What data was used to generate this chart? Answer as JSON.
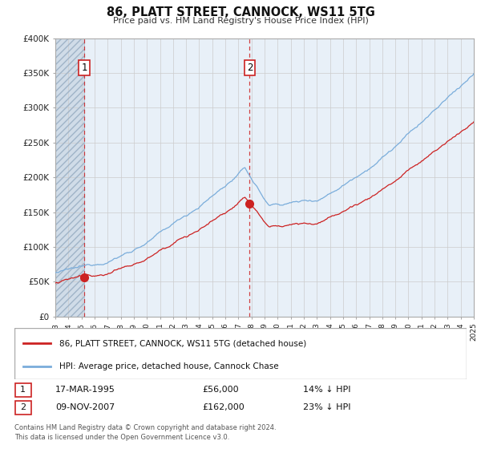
{
  "title": "86, PLATT STREET, CANNOCK, WS11 5TG",
  "subtitle": "Price paid vs. HM Land Registry's House Price Index (HPI)",
  "x_start": 1993,
  "x_end": 2025,
  "y_min": 0,
  "y_max": 400000,
  "y_ticks": [
    0,
    50000,
    100000,
    150000,
    200000,
    250000,
    300000,
    350000,
    400000
  ],
  "y_tick_labels": [
    "£0",
    "£50K",
    "£100K",
    "£150K",
    "£200K",
    "£250K",
    "£300K",
    "£350K",
    "£400K"
  ],
  "x_ticks": [
    1993,
    1994,
    1995,
    1996,
    1997,
    1998,
    1999,
    2000,
    2001,
    2002,
    2003,
    2004,
    2005,
    2006,
    2007,
    2008,
    2009,
    2010,
    2011,
    2012,
    2013,
    2014,
    2015,
    2016,
    2017,
    2018,
    2019,
    2020,
    2021,
    2022,
    2023,
    2024,
    2025
  ],
  "sale1_x": 1995.21,
  "sale1_y": 56000,
  "sale1_label": "1",
  "sale1_date": "17-MAR-1995",
  "sale1_price": "£56,000",
  "sale1_hpi": "14% ↓ HPI",
  "sale2_x": 2007.86,
  "sale2_y": 162000,
  "sale2_label": "2",
  "sale2_date": "09-NOV-2007",
  "sale2_price": "£162,000",
  "sale2_hpi": "23% ↓ HPI",
  "red_line_color": "#cc2222",
  "blue_line_color": "#7aaddb",
  "hatch_color": "#c8d8e8",
  "grid_color": "#cccccc",
  "bg_plot": "#e8f0f8",
  "bg_hatch": "#d0dce8",
  "background_color": "#ffffff",
  "legend_label_red": "86, PLATT STREET, CANNOCK, WS11 5TG (detached house)",
  "legend_label_blue": "HPI: Average price, detached house, Cannock Chase",
  "footnote1": "Contains HM Land Registry data © Crown copyright and database right 2024.",
  "footnote2": "This data is licensed under the Open Government Licence v3.0."
}
